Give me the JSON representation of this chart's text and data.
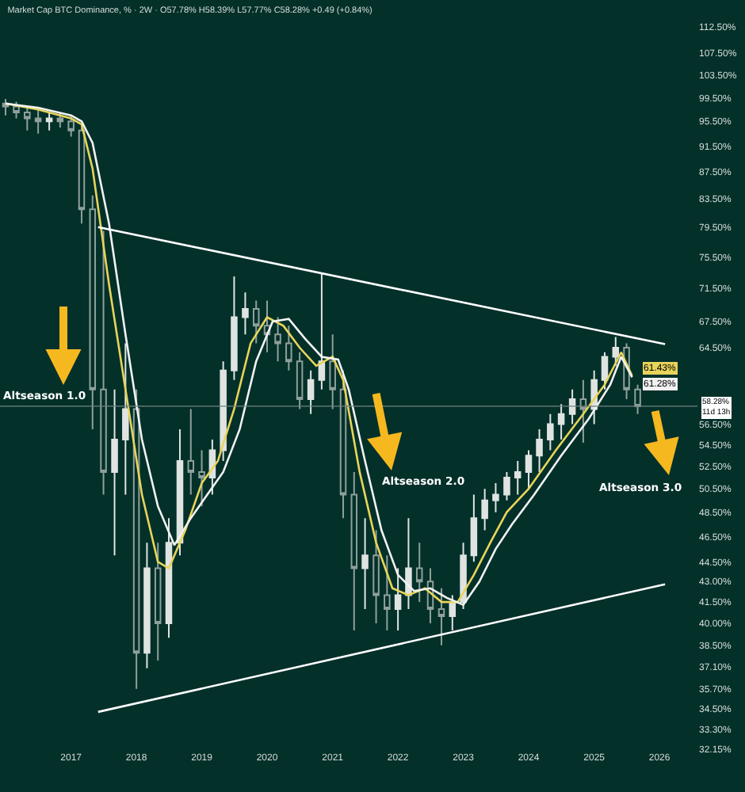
{
  "chart_data": {
    "type": "candlestick",
    "title": "Market Cap BTC Dominance, % · 2W · O57.78% H58.39% L57.77% C58.28% +0.49 (+0.84%)",
    "colors": [
      "#8fa09a",
      "#8fa09a",
      "#8fa09a",
      "#8fa09a",
      "#dfe4e1",
      "#8fa09a",
      "#8fa09a",
      "#8fa09a",
      "#8fa09a",
      "#8fa09a",
      "#dfe4e1",
      "#dfe4e1",
      "#8fa09a",
      "#dfe4e1",
      "#8fa09a",
      "#dfe4e1",
      "#dfe4e1",
      "#8fa09a",
      "#8fa09a",
      "#dfe4e1",
      "#dfe4e1",
      "#dfe4e1",
      "#dfe4e1",
      "#8fa09a",
      "#8fa09a",
      "#8fa09a",
      "#8fa09a",
      "#8fa09a",
      "#dfe4e1",
      "#dfe4e1",
      "#8fa09a",
      "#8fa09a",
      "#8fa09a",
      "#dfe4e1",
      "#8fa09a",
      "#8fa09a",
      "#dfe4e1",
      "#dfe4e1",
      "#8fa09a",
      "#8fa09a",
      "#8fa09a",
      "#dfe4e1",
      "#dfe4e1",
      "#dfe4e1",
      "#dfe4e1",
      "#dfe4e1",
      "#dfe4e1",
      "#dfe4e1",
      "#dfe4e1",
      "#dfe4e1",
      "#dfe4e1",
      "#dfe4e1",
      "#dfe4e1",
      "#8fa09a",
      "#dfe4e1",
      "#dfe4e1",
      "#dfe4e1",
      "#8fa09a",
      "#8fa09a"
    ],
    "x": [
      "2016-01",
      "2016-03",
      "2016-05",
      "2016-07",
      "2016-09",
      "2016-11",
      "2017-01",
      "2017-03",
      "2017-05",
      "2017-07",
      "2017-09",
      "2017-11",
      "2018-01",
      "2018-03",
      "2018-05",
      "2018-07",
      "2018-09",
      "2018-11",
      "2019-01",
      "2019-03",
      "2019-05",
      "2019-07",
      "2019-09",
      "2019-11",
      "2020-01",
      "2020-03",
      "2020-05",
      "2020-07",
      "2020-09",
      "2020-11",
      "2021-01",
      "2021-03",
      "2021-05",
      "2021-07",
      "2021-09",
      "2021-11",
      "2022-01",
      "2022-03",
      "2022-05",
      "2022-07",
      "2022-09",
      "2022-11",
      "2023-01",
      "2023-03",
      "2023-05",
      "2023-07",
      "2023-09",
      "2023-11",
      "2024-01",
      "2024-03",
      "2024-05",
      "2024-07",
      "2024-09",
      "2024-11",
      "2025-01",
      "2025-03",
      "2025-05",
      "2025-07",
      "2025-09"
    ],
    "ohlc": [
      [
        98.5,
        99.3,
        96.5,
        98
      ],
      [
        98,
        98.8,
        96,
        97
      ],
      [
        97,
        98,
        94,
        96
      ],
      [
        96,
        97.5,
        93.5,
        95.5
      ],
      [
        95.5,
        97,
        94,
        96
      ],
      [
        96,
        97,
        94.5,
        95.5
      ],
      [
        95.5,
        96.5,
        93,
        94
      ],
      [
        94,
        95,
        80,
        82
      ],
      [
        82,
        84,
        56,
        60
      ],
      [
        60,
        79,
        50,
        52
      ],
      [
        52,
        60,
        45,
        55
      ],
      [
        55,
        65,
        50,
        58
      ],
      [
        58,
        60,
        35.7,
        38
      ],
      [
        38,
        46,
        37,
        44
      ],
      [
        44,
        46,
        37.5,
        40
      ],
      [
        40,
        48,
        39,
        46
      ],
      [
        46,
        56,
        45,
        53
      ],
      [
        53,
        58,
        50,
        52
      ],
      [
        52,
        54,
        49,
        51.5
      ],
      [
        51.5,
        55,
        50,
        54
      ],
      [
        54,
        63,
        53,
        62
      ],
      [
        62,
        73,
        61,
        68
      ],
      [
        68,
        71,
        66,
        69
      ],
      [
        69,
        70,
        65,
        67
      ],
      [
        67,
        70,
        64,
        66
      ],
      [
        66,
        68,
        63,
        65
      ],
      [
        65,
        67,
        62,
        63
      ],
      [
        63,
        64,
        58,
        59
      ],
      [
        59,
        62,
        57.5,
        61
      ],
      [
        61,
        73.5,
        60,
        63
      ],
      [
        63,
        66,
        58,
        60
      ],
      [
        60,
        62,
        48,
        50
      ],
      [
        50,
        52,
        39.5,
        44
      ],
      [
        44,
        48,
        41,
        45
      ],
      [
        45,
        47,
        40,
        42
      ],
      [
        42,
        45,
        39.5,
        41
      ],
      [
        41,
        44,
        39.5,
        42
      ],
      [
        42,
        48,
        41,
        44
      ],
      [
        44,
        46,
        41.5,
        43
      ],
      [
        43,
        44,
        40,
        41
      ],
      [
        41,
        42.5,
        38.5,
        40.5
      ],
      [
        40.5,
        42,
        39.5,
        41.5
      ],
      [
        41.5,
        46,
        41,
        45
      ],
      [
        45,
        50,
        44.5,
        48
      ],
      [
        48,
        50.5,
        47,
        49.5
      ],
      [
        49.5,
        51,
        48.5,
        50
      ],
      [
        50,
        52,
        49.5,
        51.5
      ],
      [
        51.5,
        53,
        50,
        52
      ],
      [
        52,
        54,
        50.5,
        53.5
      ],
      [
        53.5,
        56,
        52,
        55
      ],
      [
        55,
        57.5,
        54,
        56.5
      ],
      [
        56.5,
        58.5,
        55,
        57.5
      ],
      [
        57.5,
        60,
        56.5,
        59
      ],
      [
        59,
        61,
        54.7,
        58
      ],
      [
        58,
        62,
        56.5,
        61
      ],
      [
        61,
        64,
        60,
        63.5
      ],
      [
        63.5,
        65.7,
        62.5,
        64.5
      ],
      [
        64.5,
        65,
        59,
        60
      ],
      [
        60,
        60.5,
        57.5,
        58.28
      ]
    ],
    "series": [
      {
        "type": "line",
        "color": "#e8d45a",
        "x": [
          "2016-01",
          "2016-07",
          "2017-01",
          "2017-03",
          "2017-05",
          "2017-08",
          "2017-11",
          "2018-02",
          "2018-05",
          "2018-07",
          "2018-10",
          "2019-01",
          "2019-04",
          "2019-07",
          "2019-10",
          "2020-01",
          "2020-04",
          "2020-07",
          "2020-10",
          "2021-01",
          "2021-03",
          "2021-06",
          "2021-09",
          "2021-12",
          "2022-03",
          "2022-06",
          "2022-09",
          "2022-12",
          "2023-03",
          "2023-06",
          "2023-09",
          "2024-01",
          "2024-06",
          "2024-11",
          "2025-03",
          "2025-06",
          "2025-08"
        ],
        "values": [
          98.5,
          97.5,
          96,
          95,
          88,
          72,
          60,
          50,
          44.5,
          44,
          47,
          51,
          53,
          58,
          65,
          68,
          67,
          64.5,
          62.5,
          63.5,
          61,
          52,
          46,
          42.5,
          42,
          42.5,
          41.5,
          41.5,
          43.5,
          46,
          48.5,
          50.5,
          54,
          57.5,
          60.5,
          64,
          61.43
        ],
        "value_labels": [
          null,
          null,
          null,
          null,
          null,
          null,
          null,
          null,
          null,
          null,
          null,
          null,
          null,
          null,
          null,
          null,
          null,
          null,
          null,
          null,
          null,
          null,
          null,
          null,
          null,
          null,
          null,
          null,
          null,
          null,
          null,
          null,
          null,
          null,
          null,
          null,
          "61.43%"
        ]
      },
      {
        "type": "line",
        "color": "#f2f2f2",
        "x": [
          "2016-01",
          "2016-07",
          "2017-01",
          "2017-03",
          "2017-05",
          "2017-08",
          "2017-11",
          "2018-02",
          "2018-05",
          "2018-08",
          "2018-11",
          "2019-02",
          "2019-05",
          "2019-08",
          "2019-11",
          "2020-02",
          "2020-05",
          "2020-08",
          "2020-11",
          "2021-02",
          "2021-04",
          "2021-07",
          "2021-10",
          "2022-01",
          "2022-04",
          "2022-07",
          "2022-10",
          "2023-01",
          "2023-04",
          "2023-07",
          "2023-10",
          "2024-02",
          "2024-07",
          "2024-12",
          "2025-04",
          "2025-06",
          "2025-08"
        ],
        "values": [
          98.5,
          97.8,
          96.5,
          95.5,
          92,
          80,
          66,
          55,
          49,
          45.8,
          48,
          50,
          52,
          56,
          63,
          67.5,
          67.8,
          65.5,
          63.5,
          63.2,
          60,
          53,
          47,
          43.5,
          42.3,
          42.5,
          41.8,
          41.3,
          43,
          45.5,
          47.5,
          50,
          53.5,
          57,
          60.5,
          63.5,
          61.28
        ],
        "value_labels": [
          null,
          null,
          null,
          null,
          null,
          null,
          null,
          null,
          null,
          null,
          null,
          null,
          null,
          null,
          null,
          null,
          null,
          null,
          null,
          null,
          null,
          null,
          null,
          null,
          null,
          null,
          null,
          null,
          null,
          null,
          null,
          null,
          null,
          null,
          null,
          null,
          "61.28%"
        ]
      },
      {
        "type": "line",
        "color": "#ffffff",
        "x": [
          "2017-06",
          "2026-02"
        ],
        "values": [
          79.5,
          64.9
        ]
      },
      {
        "type": "line",
        "color": "#ffffff",
        "x": [
          "2017-06",
          "2026-02"
        ],
        "values": [
          34.3,
          42.8
        ]
      }
    ],
    "log": true,
    "grid": false,
    "xlim": [
      "2015-12-01",
      "2026-08-01"
    ],
    "xticks": [
      {
        "value": "2017",
        "label": "2017"
      },
      {
        "value": "2018",
        "label": "2018"
      },
      {
        "value": "2019",
        "label": "2019"
      },
      {
        "value": "2020",
        "label": "2020"
      },
      {
        "value": "2021",
        "label": "2021"
      },
      {
        "value": "2022",
        "label": "2022"
      },
      {
        "value": "2023",
        "label": "2023"
      },
      {
        "value": "2024",
        "label": "2024"
      },
      {
        "value": "2025",
        "label": "2025"
      },
      {
        "value": "2026",
        "label": "2026"
      }
    ],
    "ylim": [
      32.15,
      112.5
    ],
    "yticks": [
      {
        "value": 32.15,
        "label": "32.15%"
      },
      {
        "value": 33.3,
        "label": "33.30%"
      },
      {
        "value": 34.5,
        "label": "34.50%"
      },
      {
        "value": 35.7,
        "label": "35.70%"
      },
      {
        "value": 37.1,
        "label": "37.10%"
      },
      {
        "value": 38.5,
        "label": "38.50%"
      },
      {
        "value": 40,
        "label": "40.00%"
      },
      {
        "value": 41.5,
        "label": "41.50%"
      },
      {
        "value": 43,
        "label": "43.00%"
      },
      {
        "value": 44.5,
        "label": "44.50%"
      },
      {
        "value": 46.5,
        "label": "46.50%"
      },
      {
        "value": 48.5,
        "label": "48.50%"
      },
      {
        "value": 50.5,
        "label": "50.50%"
      },
      {
        "value": 52.5,
        "label": "52.50%"
      },
      {
        "value": 54.5,
        "label": "54.50%"
      },
      {
        "value": 56.5,
        "label": "56.50%"
      },
      {
        "value": 64.5,
        "label": "64.50%"
      },
      {
        "value": 67.5,
        "label": "67.50%"
      },
      {
        "value": 71.5,
        "label": "71.50%"
      },
      {
        "value": 75.5,
        "label": "75.50%"
      },
      {
        "value": 79.5,
        "label": "79.50%"
      },
      {
        "value": 83.5,
        "label": "83.50%"
      },
      {
        "value": 87.5,
        "label": "87.50%"
      },
      {
        "value": 91.5,
        "label": "91.50%"
      },
      {
        "value": 95.5,
        "label": "95.50%"
      },
      {
        "value": 99.5,
        "label": "99.50%"
      },
      {
        "value": 103.5,
        "label": "103.50%"
      },
      {
        "value": 107.5,
        "label": "107.50%"
      },
      {
        "value": 112.5,
        "label": "112.50%"
      }
    ],
    "ref_lines": [
      {
        "axis": "y",
        "value": 58.28,
        "label": "58.28%\n11d 13h",
        "color": "#6f8580"
      }
    ],
    "annotations": [
      "Altseason 1.0",
      "Altseason 2.0",
      "Altseason 3.0"
    ]
  }
}
